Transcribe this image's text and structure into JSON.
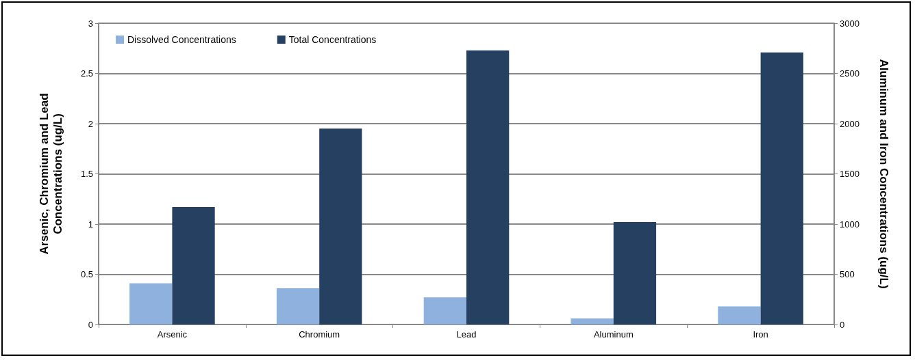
{
  "chart_data": {
    "type": "bar",
    "ylabel": "Arsenic, Chromium and Lead\nConcentrations (ug/L)",
    "y2label": "Aluminum and Iron Concentrations (ug/L)",
    "categories": [
      "Arsenic",
      "Chromium",
      "Lead",
      "Aluminum",
      "Iron"
    ],
    "series": [
      {
        "name": "Dissolved Concentrations",
        "color": "#8eb1dd",
        "values": [
          0.41,
          0.36,
          0.27,
          null,
          null
        ]
      },
      {
        "name": "Total Concentrations",
        "color": "#264061",
        "values": [
          1.17,
          1.95,
          2.73,
          null,
          null
        ]
      },
      {
        "color": "#8eb1dd",
        "axis": "y2",
        "values": [
          null,
          null,
          null,
          60,
          180
        ]
      },
      {
        "color": "#264061",
        "axis": "y2",
        "values": [
          null,
          null,
          null,
          1020,
          2710
        ]
      }
    ],
    "ylim": [
      0,
      3
    ],
    "yticks": [
      0,
      0.5,
      1,
      1.5,
      2,
      2.5,
      3
    ],
    "y2lim": [
      0,
      3000
    ],
    "y2ticks": [
      0,
      500,
      1000,
      1500,
      2000,
      2500,
      3000
    ],
    "grid": "y",
    "legend": "top left"
  }
}
